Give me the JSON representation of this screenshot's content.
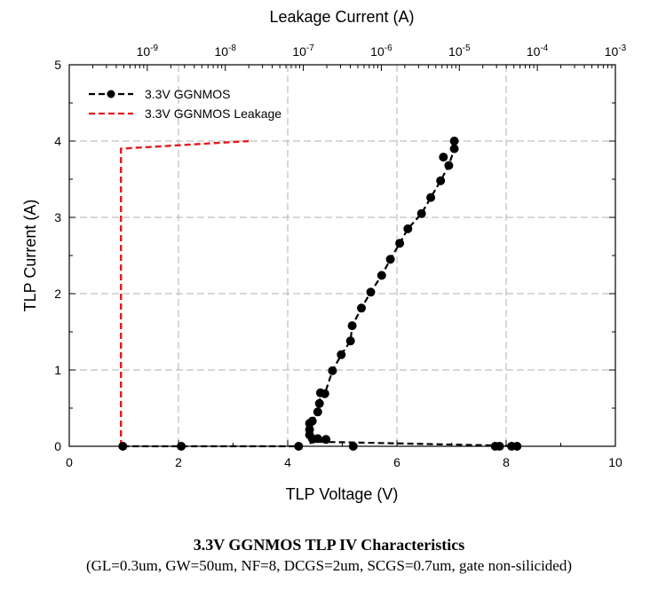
{
  "figure": {
    "caption_title": "3.3V GGNMOS TLP IV Characteristics",
    "caption_subtitle": "(GL=0.3um, GW=50um, NF=8, DCGS=2um, SCGS=0.7um, gate non-silicided)"
  },
  "chart_data": {
    "type": "scatter",
    "xlabel": "TLP Voltage (V)",
    "ylabel": "TLP Current (A)",
    "x2label": "Leakage Current (A)",
    "xlim": [
      0,
      10
    ],
    "ylim": [
      0,
      5
    ],
    "x2lim_exponent": [
      -10,
      -3
    ],
    "x_ticks": [
      "0",
      "2",
      "4",
      "6",
      "8",
      "10"
    ],
    "y_ticks": [
      "0",
      "1",
      "2",
      "3",
      "4",
      "5"
    ],
    "x2_ticks": [
      {
        "base": "10",
        "exp": "-9",
        "value": 1e-09
      },
      {
        "base": "10",
        "exp": "-8",
        "value": 1e-08
      },
      {
        "base": "10",
        "exp": "-7",
        "value": 1e-07
      },
      {
        "base": "10",
        "exp": "-6",
        "value": 1e-06
      },
      {
        "base": "10",
        "exp": "-5",
        "value": 1e-05
      },
      {
        "base": "10",
        "exp": "-4",
        "value": 0.0001
      },
      {
        "base": "10",
        "exp": "-3",
        "value": 0.001
      }
    ],
    "x2_scale": "log",
    "grid": true,
    "legend_position": "top-left",
    "series": [
      {
        "name": "3.3V GGNMOS",
        "color": "#000000",
        "style": "dashed-with-markers",
        "axis": "bottom",
        "points": [
          [
            0.98,
            0.0
          ],
          [
            2.05,
            0.0
          ],
          [
            4.2,
            0.0
          ],
          [
            5.2,
            0.0
          ],
          [
            7.8,
            0.0
          ],
          [
            7.88,
            0.0
          ],
          [
            8.1,
            0.0
          ],
          [
            8.2,
            0.0
          ],
          [
            4.7,
            0.09
          ],
          [
            4.55,
            0.1
          ],
          [
            4.45,
            0.1
          ],
          [
            4.4,
            0.15
          ],
          [
            4.4,
            0.22
          ],
          [
            4.4,
            0.3
          ],
          [
            4.45,
            0.33
          ],
          [
            4.55,
            0.45
          ],
          [
            4.58,
            0.56
          ],
          [
            4.6,
            0.7
          ],
          [
            4.68,
            0.69
          ],
          [
            4.82,
            0.99
          ],
          [
            4.98,
            1.2
          ],
          [
            5.15,
            1.38
          ],
          [
            5.18,
            1.58
          ],
          [
            5.35,
            1.81
          ],
          [
            5.52,
            2.02
          ],
          [
            5.72,
            2.24
          ],
          [
            5.88,
            2.45
          ],
          [
            6.05,
            2.66
          ],
          [
            6.2,
            2.85
          ],
          [
            6.45,
            3.05
          ],
          [
            6.62,
            3.26
          ],
          [
            6.8,
            3.48
          ],
          [
            6.95,
            3.68
          ],
          [
            6.85,
            3.79
          ],
          [
            7.05,
            3.9
          ],
          [
            7.05,
            4.0
          ]
        ],
        "paths": [
          [
            [
              0.98,
              0.0
            ],
            [
              2.05,
              0.0
            ],
            [
              4.2,
              0.0
            ]
          ],
          [
            [
              4.4,
              0.04
            ],
            [
              4.7,
              0.09
            ],
            [
              4.55,
              0.1
            ],
            [
              4.45,
              0.1
            ],
            [
              4.4,
              0.15
            ],
            [
              4.4,
              0.22
            ],
            [
              4.4,
              0.3
            ],
            [
              4.45,
              0.33
            ],
            [
              4.55,
              0.45
            ],
            [
              4.58,
              0.56
            ],
            [
              4.6,
              0.7
            ],
            [
              4.68,
              0.69
            ],
            [
              4.82,
              0.99
            ],
            [
              4.98,
              1.2
            ],
            [
              5.15,
              1.38
            ],
            [
              5.18,
              1.58
            ],
            [
              5.35,
              1.81
            ],
            [
              5.52,
              2.02
            ],
            [
              5.72,
              2.24
            ],
            [
              5.88,
              2.45
            ],
            [
              6.05,
              2.66
            ],
            [
              6.2,
              2.85
            ],
            [
              6.45,
              3.05
            ],
            [
              6.62,
              3.26
            ],
            [
              6.8,
              3.48
            ],
            [
              6.95,
              3.68
            ],
            [
              7.05,
              3.9
            ],
            [
              7.05,
              4.0
            ]
          ],
          [
            [
              4.4,
              0.06
            ],
            [
              5.2,
              0.05
            ],
            [
              7.8,
              0.01
            ],
            [
              8.2,
              0.0
            ]
          ]
        ]
      },
      {
        "name": "3.3V GGNMOS Leakage",
        "color": "#e41a1c",
        "style": "dashed",
        "axis": "top",
        "points": [
          [
            4.6e-10,
            0.0
          ],
          [
            4.6e-10,
            3.9
          ],
          [
            2e-08,
            4.0
          ]
        ]
      }
    ]
  }
}
